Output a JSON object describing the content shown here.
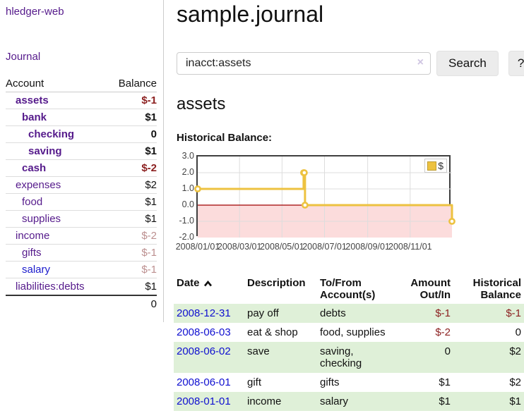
{
  "colors": {
    "link_purple": "#551a8b",
    "link_blue": "#1a1acc",
    "date_link_blue": "#0f0fd0",
    "negative_strong": "#8b1f1f",
    "negative_muted": "#bc8f8f",
    "row_highlight_green": "#dff0d8",
    "series_gold": "#edc240",
    "negative_region_pink": "#fcdcdc",
    "zero_line_red": "#a00000",
    "gridline": "#dddddd"
  },
  "sidebar": {
    "app_title": "hledger-web",
    "journal_link": "Journal",
    "accounts": {
      "headers": {
        "account": "Account",
        "balance": "Balance"
      },
      "rows": [
        {
          "name": "assets",
          "depth": 1,
          "bold": true,
          "balance": "$-1",
          "balance_style": "neg-strong",
          "link_style": "purple"
        },
        {
          "name": "bank",
          "depth": 2,
          "bold": true,
          "balance": "$1",
          "balance_style": "normal",
          "link_style": "purple"
        },
        {
          "name": "checking",
          "depth": 3,
          "bold": true,
          "balance": "0",
          "balance_style": "normal",
          "link_style": "purple"
        },
        {
          "name": "saving",
          "depth": 3,
          "bold": true,
          "balance": "$1",
          "balance_style": "normal",
          "link_style": "purple"
        },
        {
          "name": "cash",
          "depth": 2,
          "bold": true,
          "balance": "$-2",
          "balance_style": "neg-strong",
          "link_style": "purple"
        },
        {
          "name": "expenses",
          "depth": 1,
          "bold": false,
          "balance": "$2",
          "balance_style": "normal",
          "link_style": "purple"
        },
        {
          "name": "food",
          "depth": 2,
          "bold": false,
          "balance": "$1",
          "balance_style": "normal",
          "link_style": "purple"
        },
        {
          "name": "supplies",
          "depth": 2,
          "bold": false,
          "balance": "$1",
          "balance_style": "normal",
          "link_style": "purple"
        },
        {
          "name": "income",
          "depth": 1,
          "bold": false,
          "balance": "$-2",
          "balance_style": "neg-muted",
          "link_style": "purple"
        },
        {
          "name": "gifts",
          "depth": 2,
          "bold": false,
          "balance": "$-1",
          "balance_style": "neg-muted",
          "link_style": "purple"
        },
        {
          "name": "salary",
          "depth": 2,
          "bold": false,
          "balance": "$-1",
          "balance_style": "neg-muted",
          "link_style": "blue"
        },
        {
          "name": "liabilities:debts",
          "depth": 1,
          "bold": false,
          "balance": "$1",
          "balance_style": "normal",
          "link_style": "purple"
        }
      ],
      "total": "0"
    }
  },
  "main": {
    "title": "sample.journal",
    "search": {
      "query": "inacct:assets",
      "clear_symbol": "×",
      "search_label": "Search",
      "help_label": "?"
    },
    "account_heading": "assets",
    "chart_heading": "Historical Balance:"
  },
  "chart_data": {
    "type": "line",
    "style": "step-after",
    "title": "Historical Balance:",
    "xrange": [
      "2008-01-01",
      "2008-12-31"
    ],
    "ylim": [
      -2.0,
      3.0
    ],
    "yticks": [
      3.0,
      2.0,
      1.0,
      0.0,
      -1.0,
      -2.0
    ],
    "ytick_labels": [
      "3.0",
      "2.0",
      "1.0",
      "0.0",
      "-1.0",
      "-2.0"
    ],
    "xticks": [
      "2008/01/01",
      "2008/03/01",
      "2008/05/01",
      "2008/07/01",
      "2008/09/01",
      "2008/11/01"
    ],
    "grid": true,
    "legend_position": "top-right",
    "series": [
      {
        "name": "$",
        "color": "#edc240",
        "points": [
          {
            "date": "2008-01-01",
            "value": 1
          },
          {
            "date": "2008-06-01",
            "value": 2
          },
          {
            "date": "2008-06-02",
            "value": 2
          },
          {
            "date": "2008-06-03",
            "value": 0
          },
          {
            "date": "2008-12-31",
            "value": -1
          }
        ]
      }
    ],
    "negative_region_color": "#fcdcdc",
    "zero_line_color": "#a00000",
    "gridline_color": "#dddddd"
  },
  "register": {
    "headers": {
      "date": "Date",
      "description": "Description",
      "account": "To/From Account(s)",
      "amount": "Amount Out/In",
      "balance": "Historical Balance"
    },
    "sort": {
      "column": "date",
      "direction": "ascending"
    },
    "rows": [
      {
        "date": "2008-12-31",
        "description": "pay off",
        "accounts": "debts",
        "amount": "$-1",
        "amount_negative": true,
        "balance": "$-1",
        "balance_negative": true,
        "highlighted": true
      },
      {
        "date": "2008-06-03",
        "description": "eat & shop",
        "accounts": "food, supplies",
        "amount": "$-2",
        "amount_negative": true,
        "balance": "0",
        "balance_negative": false,
        "highlighted": false
      },
      {
        "date": "2008-06-02",
        "description": "save",
        "accounts": "saving, checking",
        "amount": "0",
        "amount_negative": false,
        "balance": "$2",
        "balance_negative": false,
        "highlighted": true
      },
      {
        "date": "2008-06-01",
        "description": "gift",
        "accounts": "gifts",
        "amount": "$1",
        "amount_negative": false,
        "balance": "$2",
        "balance_negative": false,
        "highlighted": false
      },
      {
        "date": "2008-01-01",
        "description": "income",
        "accounts": "salary",
        "amount": "$1",
        "amount_negative": false,
        "balance": "$1",
        "balance_negative": false,
        "highlighted": true
      }
    ]
  }
}
